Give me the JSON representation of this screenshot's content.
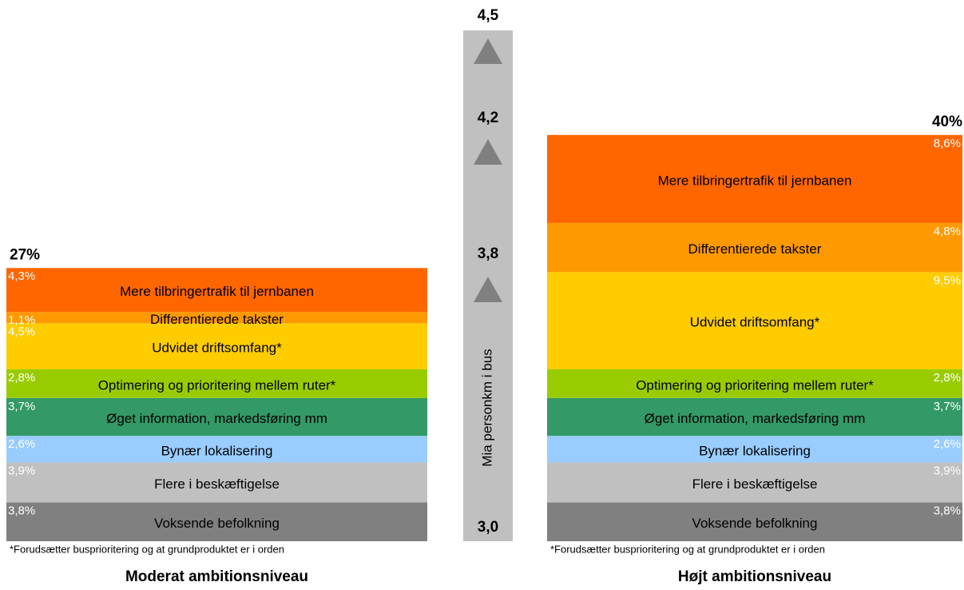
{
  "chart_data": {
    "type": "stacked_panels",
    "panels": [
      {
        "title": "Moderat ambitionsniveau",
        "total": "27%",
        "note": "*Forudsætter busprioritering og at grundproduktet er i orden",
        "value_side": "left",
        "segments": [
          {
            "name": "Voksende befolkning",
            "value": 3.8,
            "value_label": "3,8%",
            "color": "#808080"
          },
          {
            "name": "Flere i beskæftigelse",
            "value": 3.9,
            "value_label": "3,9%",
            "color": "#c0c0c0"
          },
          {
            "name": "Bynær lokalisering",
            "value": 2.6,
            "value_label": "2,6%",
            "color": "#99ccff"
          },
          {
            "name": "Øget information, markedsføring mm",
            "value": 3.7,
            "value_label": "3,7%",
            "color": "#339966"
          },
          {
            "name": "Optimering og prioritering mellem ruter*",
            "value": 2.8,
            "value_label": "2,8%",
            "color": "#99cc00"
          },
          {
            "name": "Udvidet driftsomfang*",
            "value": 4.5,
            "value_label": "4,5%",
            "color": "#ffcc00"
          },
          {
            "name": "Differentierede takster",
            "value": 1.1,
            "value_label": "1,1%",
            "color": "#ff9900"
          },
          {
            "name": "Mere tilbringertrafik til jernbanen",
            "value": 4.3,
            "value_label": "4,3%",
            "color": "#ff6600"
          }
        ]
      },
      {
        "title": "Højt ambitionsniveau",
        "total": "40%",
        "note": "*Forudsætter busprioritering og at grundproduktet er i orden",
        "value_side": "right",
        "segments": [
          {
            "name": "Voksende befolkning",
            "value": 3.8,
            "value_label": "3,8%",
            "color": "#808080"
          },
          {
            "name": "Flere i beskæftigelse",
            "value": 3.9,
            "value_label": "3,9%",
            "color": "#c0c0c0"
          },
          {
            "name": "Bynær lokalisering",
            "value": 2.6,
            "value_label": "2,6%",
            "color": "#99ccff"
          },
          {
            "name": "Øget information, markedsføring mm",
            "value": 3.7,
            "value_label": "3,7%",
            "color": "#339966"
          },
          {
            "name": "Optimering og prioritering mellem ruter*",
            "value": 2.8,
            "value_label": "2,8%",
            "color": "#99cc00"
          },
          {
            "name": "Udvidet driftsomfang*",
            "value": 9.5,
            "value_label": "9,5%",
            "color": "#ffcc00"
          },
          {
            "name": "Differentierede takster",
            "value": 4.8,
            "value_label": "4,8%",
            "color": "#ff9900"
          },
          {
            "name": "Mere tilbringertrafik til jernbanen",
            "value": 8.6,
            "value_label": "8,6%",
            "color": "#ff6600"
          }
        ]
      }
    ],
    "scale": {
      "label": "Mia personkm i bus",
      "ylim": [
        3.0,
        4.5
      ],
      "yticks": [
        {
          "value": 3.0,
          "label": "3,0"
        },
        {
          "value": 3.8,
          "label": "3,8"
        },
        {
          "value": 4.2,
          "label": "4,2"
        },
        {
          "value": 4.5,
          "label": "4,5"
        }
      ]
    }
  }
}
